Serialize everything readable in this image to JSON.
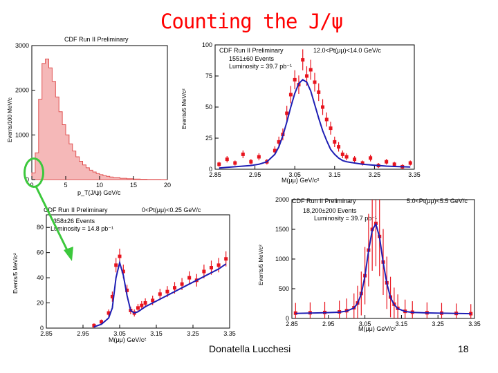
{
  "slide": {
    "title": "Counting the J/ψ",
    "author": "Donatella Lucchesi",
    "page_number": "18"
  },
  "colors": {
    "title": "#ff0000",
    "hist_fill": "#f5b8b8",
    "hist_line": "#e05050",
    "data_points": "#e8141e",
    "fit_line": "#1e1eb4",
    "annotation": "#3cc83c"
  },
  "chart_data": [
    {
      "id": "pt",
      "type": "area",
      "title": "CDF Run II Preliminary",
      "xlabel": "p_T(J/ψ) GeV/c",
      "ylabel": "Events/100 MeV/c",
      "xlim": [
        0,
        20
      ],
      "ylim": [
        0,
        3000
      ],
      "xticks": [
        0,
        5,
        10,
        15,
        20
      ],
      "xtick_labels": [
        "0",
        "5",
        "10",
        "15",
        "20"
      ],
      "yticks": [
        0,
        1000,
        2000,
        3000
      ],
      "ytick_labels": [
        "0",
        "1000",
        "2000",
        "3000"
      ],
      "x": [
        0,
        0.5,
        1,
        1.5,
        2,
        2.5,
        3,
        3.5,
        4,
        4.5,
        5,
        5.5,
        6,
        6.5,
        7,
        7.5,
        8,
        8.5,
        9,
        9.5,
        10,
        10.5,
        11,
        11.5,
        12,
        13,
        14,
        15,
        16,
        17,
        18,
        19,
        20
      ],
      "values": [
        150,
        600,
        1800,
        2600,
        2700,
        2500,
        2200,
        1850,
        1520,
        1230,
        1000,
        800,
        640,
        510,
        410,
        330,
        265,
        210,
        170,
        135,
        110,
        90,
        72,
        58,
        46,
        30,
        20,
        13,
        8,
        5,
        3,
        2,
        1
      ]
    },
    {
      "id": "high",
      "type": "scatter",
      "title": "CDF Run II Preliminary",
      "range_label": "12.0<Pt(μμ)<14.0 GeV/c",
      "events_label": "1551±60 Events",
      "luminosity_label": "Luminosity = 39.7 pb⁻¹",
      "xlabel": "M(μμ) GeV/c²",
      "ylabel": "Events/5 MeV/c²",
      "xlim": [
        2.85,
        3.35
      ],
      "ylim": [
        0,
        100
      ],
      "xticks": [
        2.85,
        2.95,
        3.05,
        3.15,
        3.25,
        3.35
      ],
      "xtick_labels": [
        "2.85",
        "2.95",
        "3.05",
        "3.15",
        "3.25",
        "3.35"
      ],
      "yticks": [
        0,
        25,
        50,
        75,
        100
      ],
      "ytick_labels": [
        "0",
        "25",
        "50",
        "75",
        "100"
      ],
      "x": [
        2.86,
        2.88,
        2.9,
        2.92,
        2.94,
        2.96,
        2.98,
        3.0,
        3.01,
        3.02,
        3.03,
        3.04,
        3.05,
        3.06,
        3.07,
        3.08,
        3.09,
        3.1,
        3.11,
        3.12,
        3.13,
        3.14,
        3.15,
        3.16,
        3.17,
        3.18,
        3.2,
        3.22,
        3.24,
        3.26,
        3.28,
        3.3,
        3.32,
        3.34
      ],
      "values": [
        4,
        8,
        5,
        12,
        6,
        10,
        6,
        15,
        22,
        28,
        45,
        60,
        72,
        68,
        88,
        75,
        80,
        70,
        62,
        50,
        40,
        33,
        22,
        18,
        12,
        10,
        8,
        5,
        9,
        3,
        6,
        4,
        2,
        5
      ],
      "fit": [
        1,
        1.5,
        2,
        2.5,
        3,
        4,
        6,
        12,
        18,
        27,
        38,
        50,
        61,
        69,
        72,
        70,
        63,
        52,
        41,
        31,
        23,
        16,
        12,
        9,
        7,
        6,
        5,
        4,
        3.5,
        3,
        2.5,
        2.2,
        2,
        1.8
      ]
    },
    {
      "id": "low",
      "type": "scatter",
      "title": "CDF Run II Preliminary",
      "range_label": "0<Pt(μμ)<0.25 GeV/c",
      "events_label": "358±26 Events",
      "luminosity_label": "Luminosity = 14.8 pb⁻¹",
      "xlabel": "M(μμ) GeV/c²",
      "ylabel": "Events/5 MeV/c²",
      "xlim": [
        2.85,
        3.35
      ],
      "ylim": [
        0,
        90
      ],
      "xticks": [
        2.85,
        2.95,
        3.05,
        3.15,
        3.25,
        3.35
      ],
      "xtick_labels": [
        "2.85",
        "2.95",
        "3.05",
        "3.15",
        "3.25",
        "3.35"
      ],
      "yticks": [
        0,
        20,
        40,
        60,
        80
      ],
      "ytick_labels": [
        "0",
        "20",
        "40",
        "60",
        "80"
      ],
      "x": [
        2.98,
        3.0,
        3.02,
        3.03,
        3.04,
        3.05,
        3.06,
        3.07,
        3.08,
        3.09,
        3.1,
        3.11,
        3.12,
        3.14,
        3.16,
        3.18,
        3.2,
        3.22,
        3.24,
        3.26,
        3.28,
        3.3,
        3.32,
        3.34
      ],
      "values": [
        2,
        5,
        12,
        25,
        50,
        57,
        45,
        30,
        14,
        12,
        16,
        18,
        20,
        22,
        27,
        29,
        32,
        35,
        40,
        38,
        45,
        48,
        50,
        55
      ],
      "fit": [
        1,
        3,
        8,
        16,
        40,
        52,
        42,
        26,
        14,
        12,
        13,
        15,
        17,
        20,
        23,
        26,
        29,
        32,
        35,
        38,
        41,
        44,
        47,
        51
      ]
    },
    {
      "id": "mid",
      "type": "scatter",
      "title": "CDF Run II Preliminary",
      "range_label": "5.0<Pt(μμ)<5.5 GeV/c",
      "events_label": "18,200±200 Events",
      "luminosity_label": "Luminosity = 39.7 pb⁻¹",
      "xlabel": "M(μμ) GeV/c²",
      "ylabel": "Events/5 MeV/c²",
      "xlim": [
        2.85,
        3.35
      ],
      "ylim": [
        0,
        2000
      ],
      "xticks": [
        2.85,
        2.95,
        3.05,
        3.15,
        3.25,
        3.35
      ],
      "xtick_labels": [
        "2.85",
        "2.95",
        "3.05",
        "3.15",
        "3.25",
        "3.35"
      ],
      "yticks": [
        0,
        500,
        1000,
        1500,
        2000
      ],
      "ytick_labels": [
        "0",
        "500",
        "1000",
        "1500",
        "2000"
      ],
      "x": [
        2.86,
        2.9,
        2.94,
        2.98,
        3.0,
        3.02,
        3.03,
        3.04,
        3.05,
        3.06,
        3.07,
        3.08,
        3.09,
        3.1,
        3.11,
        3.12,
        3.13,
        3.14,
        3.16,
        3.18,
        3.22,
        3.26,
        3.3,
        3.34
      ],
      "values": [
        90,
        95,
        100,
        110,
        130,
        180,
        260,
        420,
        720,
        1150,
        1500,
        1600,
        1380,
        950,
        600,
        360,
        240,
        170,
        120,
        105,
        95,
        90,
        85,
        80
      ],
      "fit": [
        85,
        90,
        95,
        105,
        125,
        175,
        255,
        410,
        710,
        1140,
        1490,
        1590,
        1370,
        940,
        590,
        350,
        235,
        165,
        118,
        102,
        93,
        88,
        84,
        80
      ]
    }
  ]
}
